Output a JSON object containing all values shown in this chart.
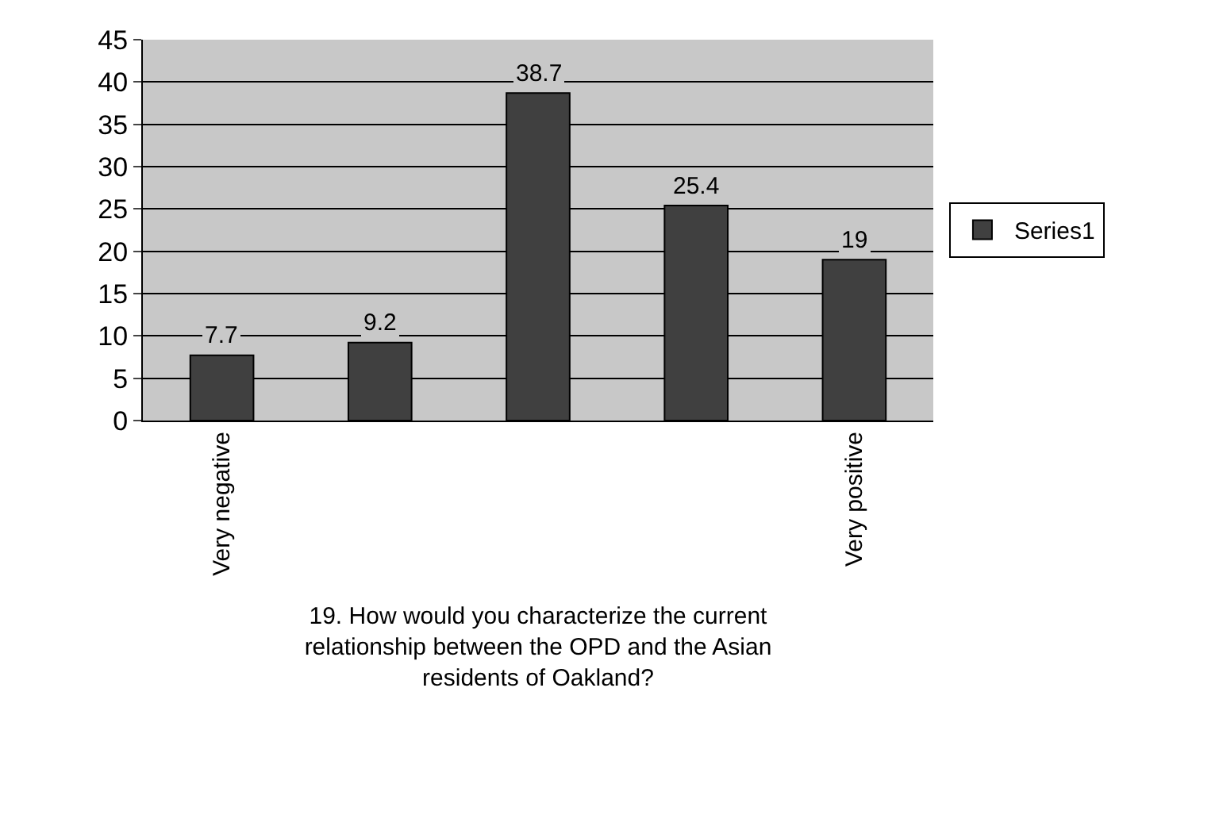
{
  "chart_data": {
    "type": "bar",
    "xlabel": "19. How would you characterize the current relationship between the OPD and the Asian residents of Oakland?",
    "categories": [
      "Very negative",
      null,
      null,
      null,
      "Very positive"
    ],
    "series": [
      {
        "name": "Series1",
        "color": "#404040",
        "values": [
          7.7,
          9.2,
          38.7,
          25.4,
          19
        ]
      }
    ],
    "ylim": [
      0,
      45
    ],
    "yticks": [
      0,
      5,
      10,
      15,
      20,
      25,
      30,
      35,
      40,
      45
    ],
    "grid": "y",
    "legend": "right",
    "data_labels": true
  }
}
